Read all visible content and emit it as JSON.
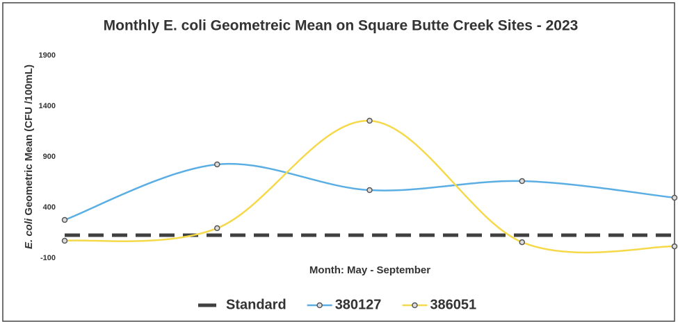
{
  "chart_data": {
    "type": "line",
    "title": "Monthly E. coli Geometreic Mean on Square Butte Creek Sites - 2023",
    "y_label_italic": "E. coli",
    "y_label": "Geometric Mean (CFU /100mL)",
    "x_label": "Month:  May - September",
    "categories": [
      null,
      null,
      null,
      null,
      null
    ],
    "series": [
      {
        "name": "Standard",
        "color": "#404040",
        "style": "dashed",
        "marker": false,
        "smooth": false,
        "values": [
          126,
          126,
          126,
          126,
          126
        ]
      },
      {
        "name": "380127",
        "color": "#5aaee3",
        "style": "solid",
        "marker": true,
        "smooth": true,
        "values": [
          277,
          825,
          571,
          660,
          496
        ]
      },
      {
        "name": "386051",
        "color": "#f5d94a",
        "style": "solid",
        "marker": true,
        "smooth": true,
        "values": [
          71,
          195,
          1256,
          57,
          16
        ]
      }
    ],
    "ylim": [
      -100,
      1900
    ],
    "yticks": [
      -100,
      400,
      900,
      1400,
      1900
    ],
    "grid": false,
    "legend": "bottom"
  }
}
